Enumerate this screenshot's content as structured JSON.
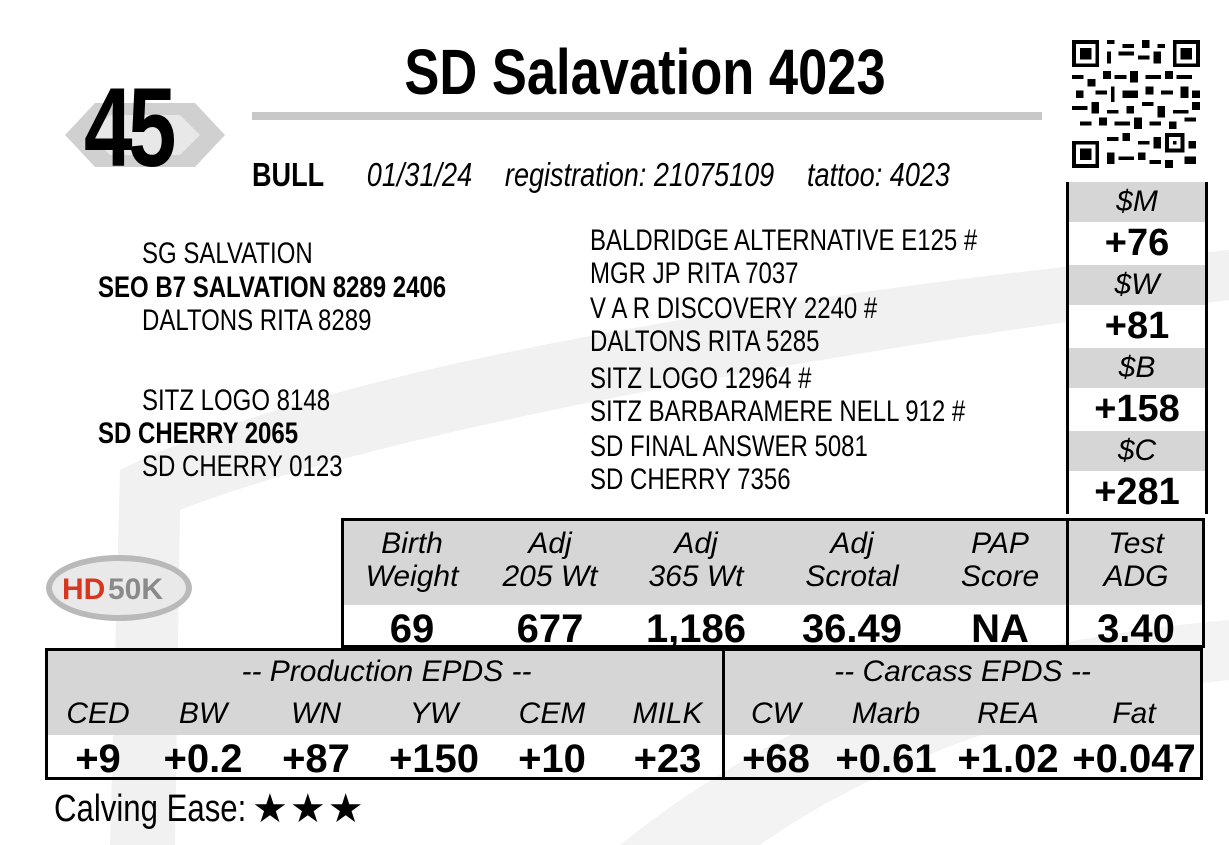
{
  "lot": "45",
  "title": "SD Salavation 4023",
  "info": {
    "sex": "BULL",
    "birth_date": "01/31/24",
    "registration": "registration:  21075109",
    "tattoo": "tattoo: 4023"
  },
  "pedigree": {
    "sire_sire": "SG SALVATION",
    "sire": "SEO B7 SALVATION 8289 2406",
    "sire_dam": "DALTONS RITA 8289",
    "dam_sire": "SITZ LOGO 8148",
    "dam": "SD CHERRY 2065",
    "dam_dam": "SD CHERRY 0123",
    "extended": [
      "BALDRIDGE ALTERNATIVE E125 #",
      "MGR JP RITA 7037",
      "V A R DISCOVERY 2240 #",
      "DALTONS RITA 5285",
      "SITZ LOGO 12964 #",
      "SITZ BARBARAMERE NELL 912 #",
      "SD FINAL ANSWER 5081",
      "SD CHERRY 7356"
    ]
  },
  "indexes": [
    {
      "label": "$M",
      "value": "+76"
    },
    {
      "label": "$W",
      "value": "+81"
    },
    {
      "label": "$B",
      "value": "+158"
    },
    {
      "label": "$C",
      "value": "+281"
    }
  ],
  "performance": [
    {
      "label1": "Birth",
      "label2": "Weight",
      "value": "69"
    },
    {
      "label1": "Adj",
      "label2": "205 Wt",
      "value": "677"
    },
    {
      "label1": "Adj",
      "label2": "365 Wt",
      "value": "1,186"
    },
    {
      "label1": "Adj",
      "label2": "Scrotal",
      "value": "36.49"
    },
    {
      "label1": "PAP",
      "label2": "Score",
      "value": "NA"
    },
    {
      "label1": "Test",
      "label2": "ADG",
      "value": "3.40"
    }
  ],
  "epds": {
    "production_title": "-- Production EPDS --",
    "carcass_title": "-- Carcass EPDS --",
    "production": [
      {
        "label": "CED",
        "value": "+9"
      },
      {
        "label": "BW",
        "value": "+0.2"
      },
      {
        "label": "WN",
        "value": "+87"
      },
      {
        "label": "YW",
        "value": "+150"
      },
      {
        "label": "CEM",
        "value": "+10"
      },
      {
        "label": "MILK",
        "value": "+23"
      }
    ],
    "carcass": [
      {
        "label": "CW",
        "value": "+68"
      },
      {
        "label": "Marb",
        "value": "+0.61"
      },
      {
        "label": "REA",
        "value": "+1.02"
      },
      {
        "label": "Fat",
        "value": "+0.047"
      }
    ]
  },
  "calving_ease": {
    "label": "Calving Ease:",
    "stars": "★★★",
    "rating": 3
  },
  "logo_text": "HD50K",
  "colors": {
    "header_gray": "#d6d6d6",
    "logo_red": "#d9361e"
  }
}
